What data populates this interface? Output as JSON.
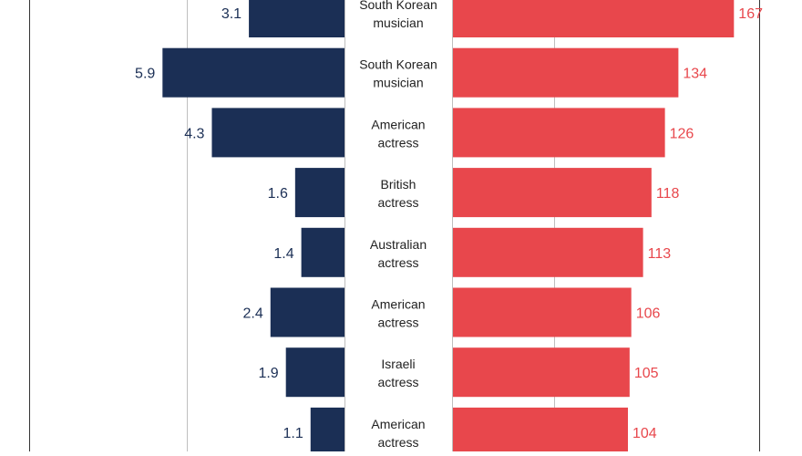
{
  "chart_data": {
    "type": "bar",
    "layout": "diverging-butterfly",
    "categories": [
      "South Korean musician",
      "South Korean musician",
      "American actress",
      "British actress",
      "Australian actress",
      "American actress",
      "Israeli actress",
      "American actress"
    ],
    "category_lines": [
      [
        "South Korean",
        "musician"
      ],
      [
        "South Korean",
        "musician"
      ],
      [
        "American",
        "actress"
      ],
      [
        "British",
        "actress"
      ],
      [
        "Australian",
        "actress"
      ],
      [
        "American",
        "actress"
      ],
      [
        "Israeli",
        "actress"
      ],
      [
        "American",
        "actress"
      ]
    ],
    "series": [
      {
        "name": "left",
        "side": "left",
        "color": "#1b2f55",
        "label_color": "#1b2f55",
        "values": [
          3.1,
          5.9,
          4.3,
          1.6,
          1.4,
          2.4,
          1.9,
          1.1
        ],
        "labels": [
          "3.1",
          "5.9",
          "4.3",
          "1.6",
          "1.4",
          "2.4",
          "1.9",
          "1.1"
        ]
      },
      {
        "name": "right",
        "side": "right",
        "color": "#e8474c",
        "label_color": "#e8474c",
        "values": [
          167,
          134,
          126,
          118,
          113,
          106,
          105,
          104
        ],
        "labels": [
          "167",
          "134",
          "126",
          "118",
          "113",
          "106",
          "105",
          "104"
        ]
      }
    ],
    "left_scale_max": 6.5,
    "right_scale_max": 195,
    "gridlines": true,
    "title": "",
    "xlabel": "",
    "ylabel": ""
  }
}
